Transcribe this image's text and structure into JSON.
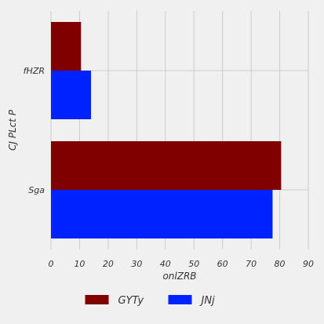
{
  "chart_data": {
    "type": "bar",
    "orientation": "horizontal",
    "categories": [
      "fHZR",
      "Sga"
    ],
    "series": [
      {
        "name": "GYTy",
        "values": [
          10.5,
          80.5
        ],
        "color": "#800000"
      },
      {
        "name": "JNj",
        "values": [
          14,
          77.5
        ],
        "color": "#0022ff"
      }
    ],
    "xlabel": "onlZRB",
    "ylabel": "CJ PLct P",
    "xlim": [
      0,
      90
    ],
    "xticks": [
      0,
      10,
      20,
      30,
      40,
      50,
      60,
      70,
      80,
      90
    ],
    "grid": true,
    "legend": "bottom-center"
  }
}
